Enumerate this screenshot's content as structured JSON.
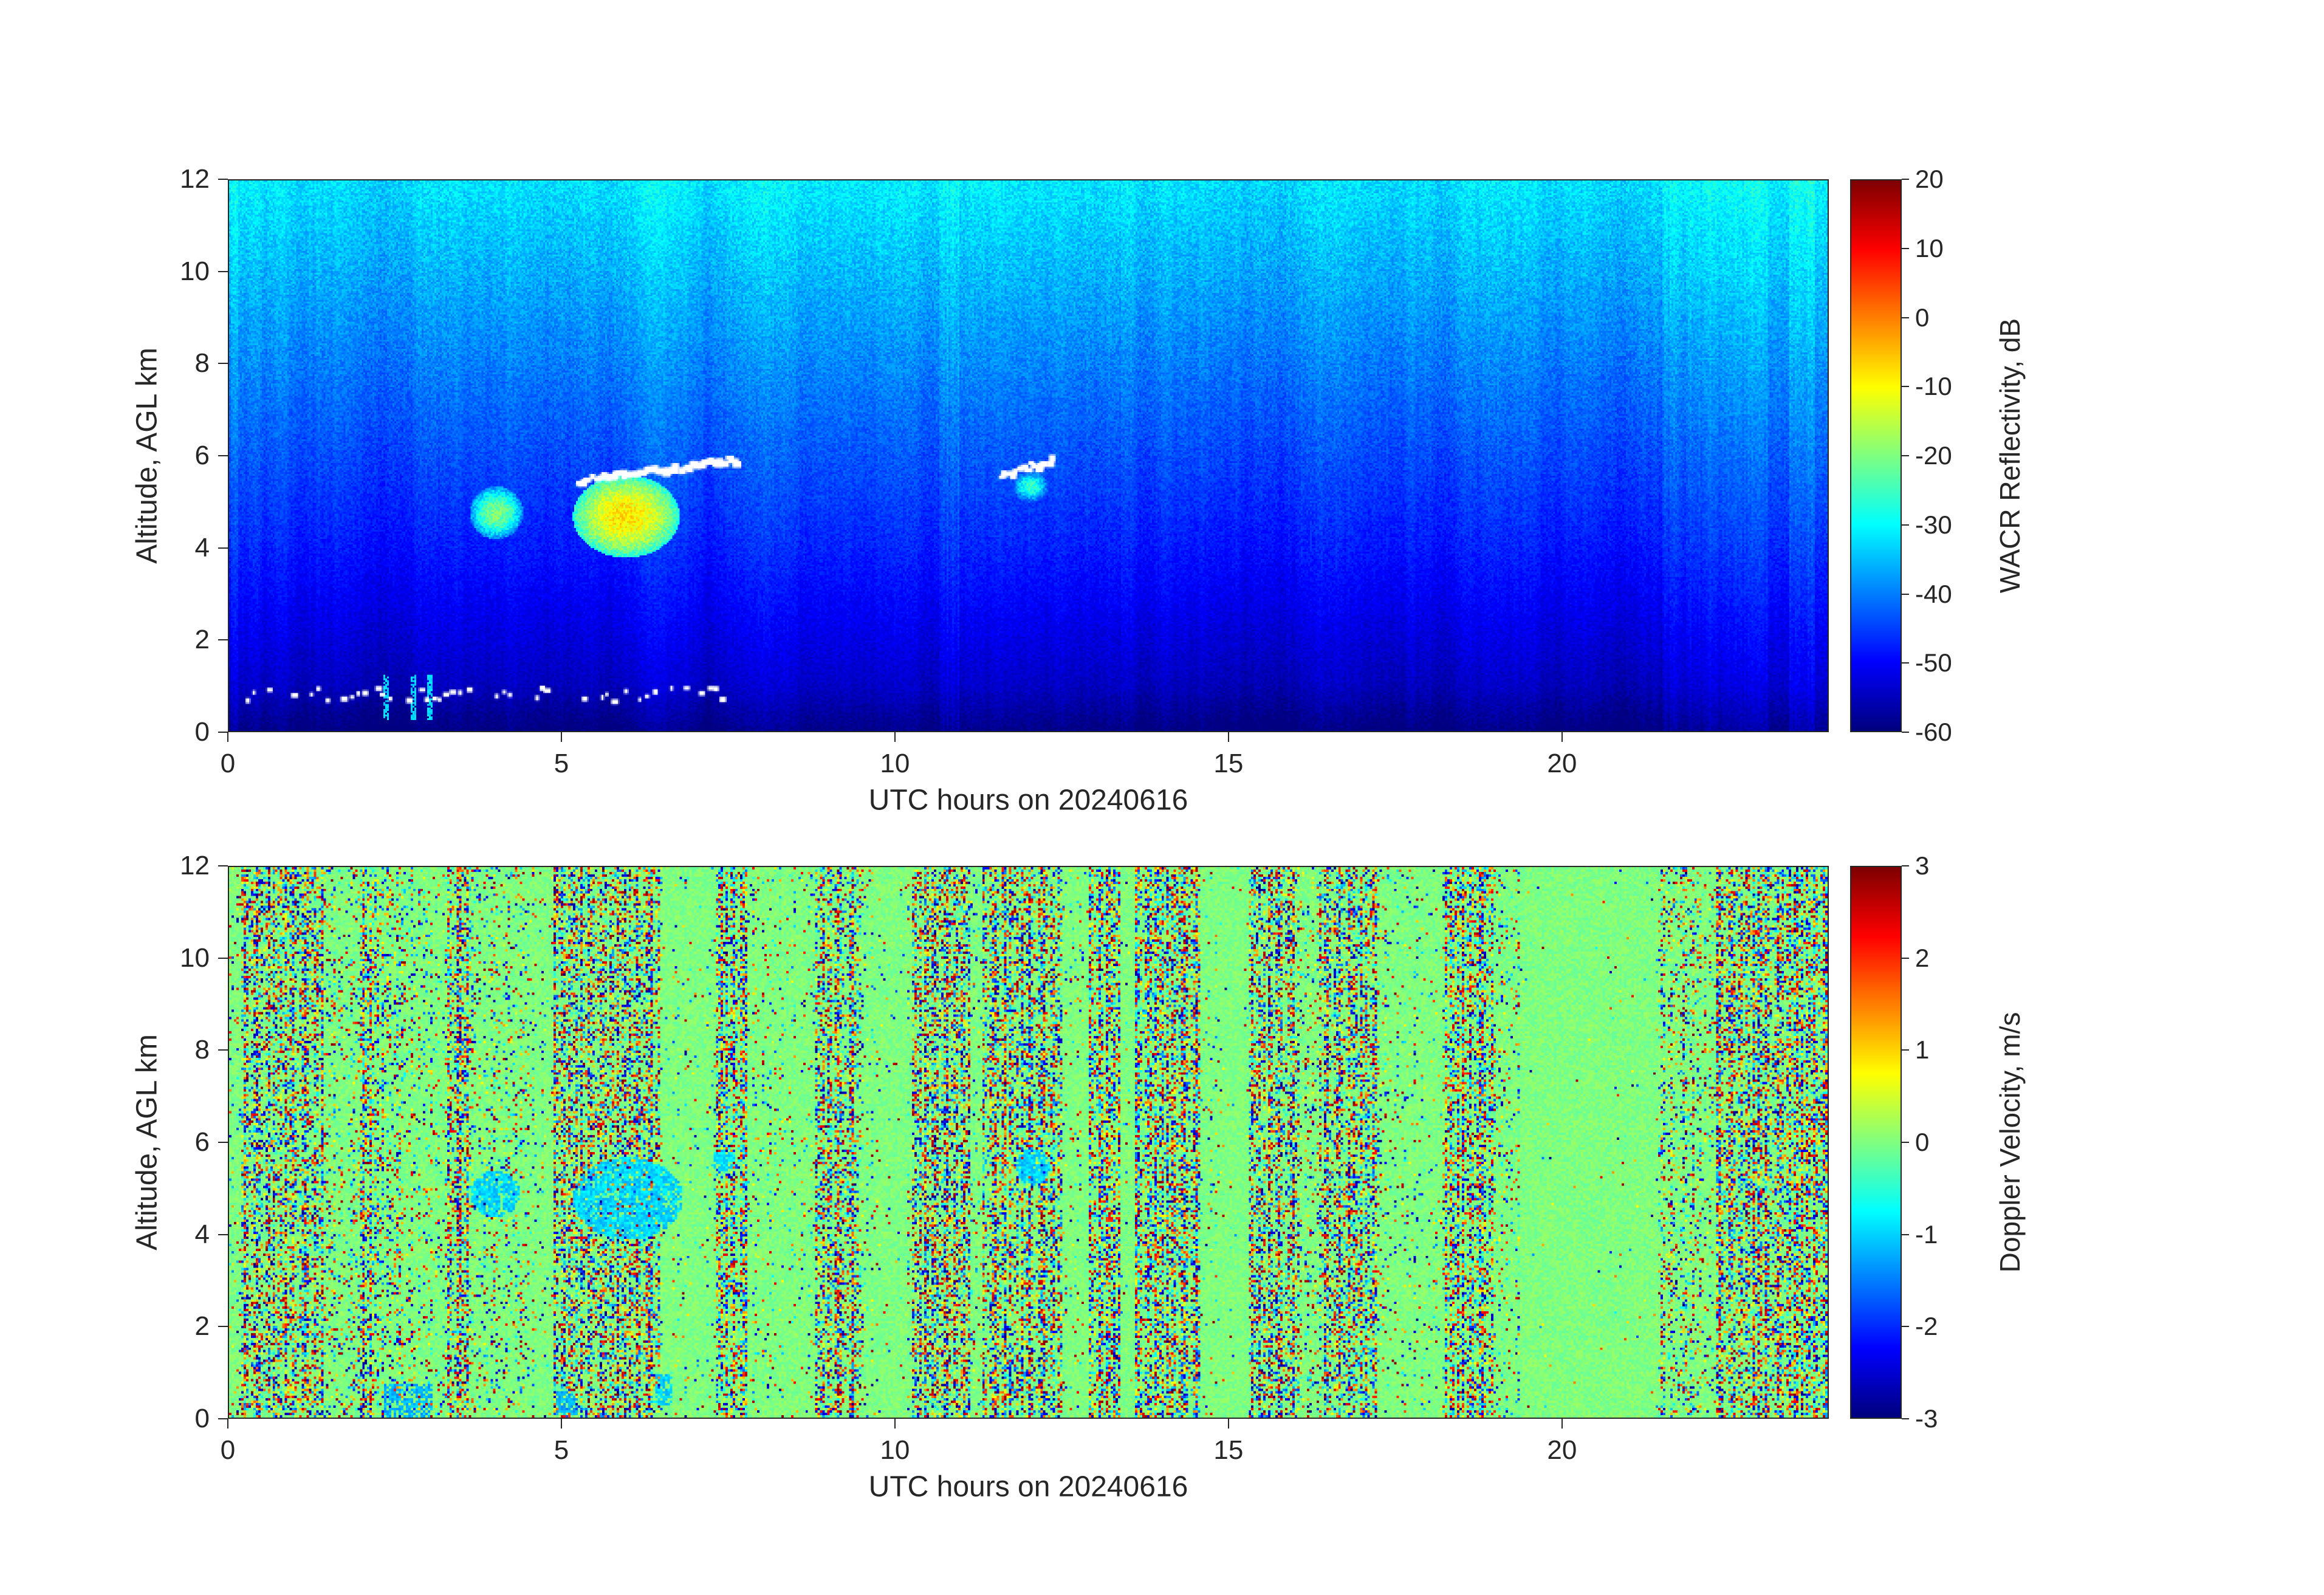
{
  "figure": {
    "title": "",
    "background_color": "#ffffff",
    "text_color": "#262626",
    "date": "20240616"
  },
  "chart_data": [
    {
      "id": "wacr-reflectivity",
      "type": "heatmap",
      "title": "",
      "xlabel": "UTC hours on 20240616",
      "ylabel": "Altitude, AGL km",
      "xlim": [
        0,
        24
      ],
      "ylim": [
        0,
        12
      ],
      "x_ticks": [
        0,
        5,
        10,
        15,
        20
      ],
      "y_ticks": [
        0,
        2,
        4,
        6,
        8,
        10,
        12
      ],
      "colorbar": {
        "label": "WACR Reflectivity, dB",
        "min": -60,
        "max": 20,
        "ticks": [
          20,
          10,
          0,
          -10,
          -20,
          -30,
          -40,
          -50,
          -60
        ],
        "colormap": "jet"
      },
      "background_profile": {
        "altitudes_km": [
          12,
          8,
          4,
          1,
          0
        ],
        "dB": [
          -32,
          -40,
          -48,
          -55,
          -60
        ]
      },
      "features": {
        "cloud_base_lines": [
          {
            "x": [
              5.25,
              7.6
            ],
            "alt": [
              5.45,
              5.9
            ]
          },
          {
            "x": [
              11.6,
              12.35
            ],
            "alt": [
              5.55,
              5.9
            ]
          }
        ],
        "cloud_patches": [
          {
            "x": [
              3.6,
              4.4
            ],
            "alt": [
              4.2,
              5.35
            ],
            "peak_dB": -20
          },
          {
            "x": [
              5.15,
              6.75
            ],
            "alt": [
              3.8,
              5.6
            ],
            "peak_dB": -8
          },
          {
            "x": [
              11.75,
              12.3
            ],
            "alt": [
              5.0,
              5.7
            ],
            "peak_dB": -26
          }
        ],
        "surface_echo": {
          "x": [
            0.25,
            7.4
          ],
          "alt": [
            0.55,
            1.05
          ]
        },
        "precip_streaks_x": [
          2.35,
          2.75,
          3.0
        ],
        "bright_streaks": [
          {
            "x": 0.06,
            "w": 0.12,
            "boost": 4
          },
          {
            "x": 10.8,
            "w": 0.3,
            "boost": 3.5
          },
          {
            "x": 13.5,
            "w": 0.25,
            "boost": 2.5
          },
          {
            "x": 22.3,
            "w": 1.6,
            "boost": 3
          },
          {
            "x": 23.6,
            "w": 0.4,
            "boost": 4
          }
        ]
      }
    },
    {
      "id": "doppler-velocity",
      "type": "heatmap",
      "title": "",
      "xlabel": "UTC hours on 20240616",
      "ylabel": "Altitude, AGL km",
      "xlim": [
        0,
        24
      ],
      "ylim": [
        0,
        12
      ],
      "x_ticks": [
        0,
        5,
        10,
        15,
        20
      ],
      "y_ticks": [
        0,
        2,
        4,
        6,
        8,
        10,
        12
      ],
      "colorbar": {
        "label": "Doppler Velocity, m/s",
        "min": -3,
        "max": 3,
        "ticks": [
          3,
          2,
          1,
          0,
          -1,
          -2,
          -3
        ],
        "colormap": "jet"
      },
      "background_value": 0,
      "features": {
        "calm_region_x": [
          19.35,
          21.45
        ],
        "sparse_bands_x": [
          [
            9.5,
            10.15
          ],
          [
            14.6,
            15.25
          ],
          [
            17.3,
            18.2
          ]
        ],
        "dense_bands_x": [
          [
            0.15,
            1.4
          ],
          [
            1.9,
            2.15
          ],
          [
            3.25,
            3.6
          ],
          [
            4.85,
            6.45
          ],
          [
            7.3,
            7.75
          ],
          [
            8.8,
            9.45
          ],
          [
            10.25,
            11.1
          ],
          [
            11.3,
            12.5
          ],
          [
            12.9,
            13.35
          ],
          [
            13.6,
            14.55
          ],
          [
            15.3,
            16.05
          ],
          [
            16.35,
            17.2
          ],
          [
            18.25,
            18.95
          ],
          [
            22.3,
            24
          ]
        ],
        "cloud_patches": [
          {
            "x": [
              3.6,
              4.35
            ],
            "alt": [
              4.4,
              5.4
            ],
            "velocity": -1
          },
          {
            "x": [
              5.15,
              6.8
            ],
            "alt": [
              3.9,
              5.7
            ],
            "velocity": -1
          },
          {
            "x": [
              7.2,
              7.6
            ],
            "alt": [
              5.4,
              5.85
            ],
            "velocity": -0.9
          },
          {
            "x": [
              11.8,
              12.3
            ],
            "alt": [
              5.1,
              5.9
            ],
            "velocity": -1
          }
        ],
        "surface_patches": [
          {
            "x": [
              2.3,
              3.05
            ],
            "alt": [
              0.0,
              0.75
            ],
            "velocity": -1.2
          },
          {
            "x": [
              4.9,
              5.2
            ],
            "alt": [
              0.1,
              0.6
            ],
            "velocity": -1.2
          },
          {
            "x": [
              6.4,
              6.65
            ],
            "alt": [
              0.3,
              0.95
            ],
            "velocity": -1.0
          }
        ]
      }
    }
  ]
}
